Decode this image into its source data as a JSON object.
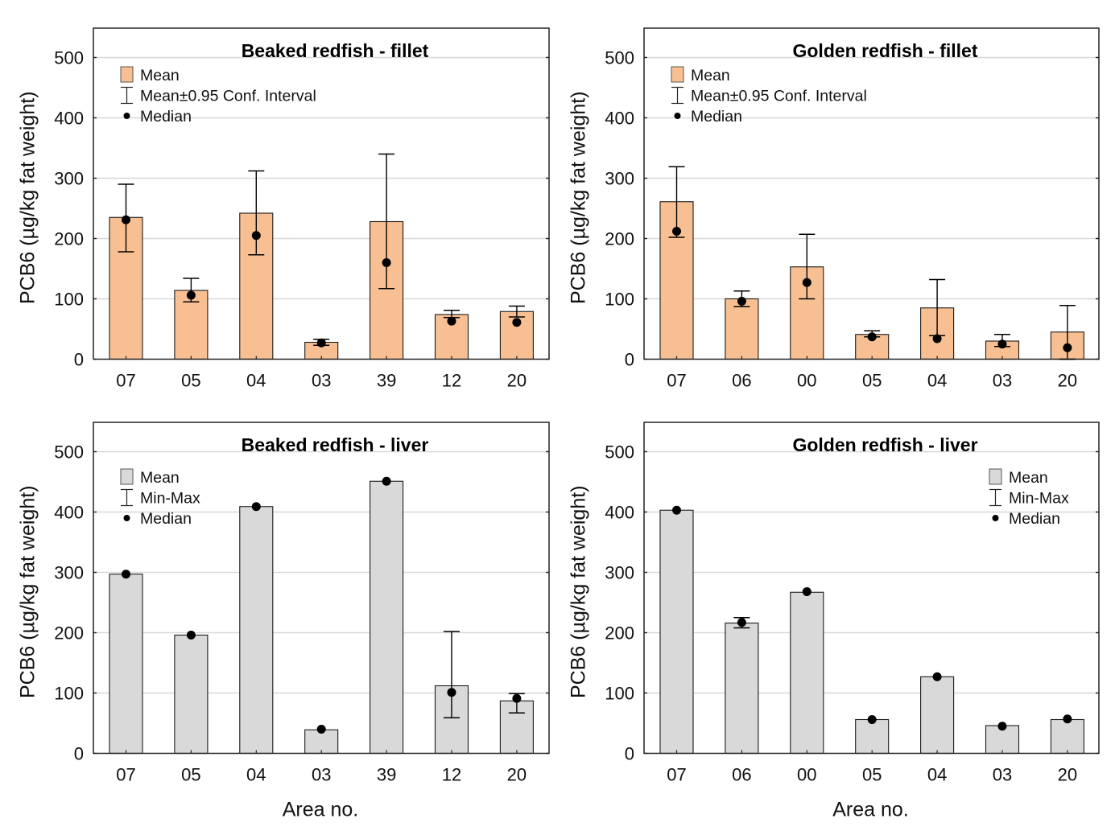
{
  "figure": {
    "colors": {
      "fillet_bar": "#F8C092",
      "liver_bar": "#D9D9D9",
      "bar_stroke": "#1a1a1a",
      "grid": "#d8d8d8",
      "axis": "#222222",
      "marker": "#000000"
    }
  },
  "chart_data": [
    {
      "id": "beaked-fillet",
      "type": "bar",
      "title": "Beaked redfish - fillet",
      "xlabel": "",
      "ylabel": "PCB6 (µg/kg fat weight)",
      "ylim": [
        0,
        550
      ],
      "yticks": [
        0,
        100,
        200,
        300,
        400,
        500
      ],
      "grid": true,
      "bar_color_key": "fillet_bar",
      "legend": {
        "placement": "top-left",
        "entries": [
          {
            "symbol": "box",
            "label": "Mean"
          },
          {
            "symbol": "errorbar",
            "label": "Mean±0.95 Conf. Interval"
          },
          {
            "symbol": "dot",
            "label": "Median"
          }
        ]
      },
      "categories": [
        "07",
        "05",
        "04",
        "03",
        "39",
        "12",
        "20"
      ],
      "series": [
        {
          "name": "Mean",
          "values": [
            235,
            114,
            242,
            28,
            228,
            74,
            79
          ]
        },
        {
          "name": "Mean±0.95 Conf. Interval (lower)",
          "values": [
            178,
            95,
            173,
            23,
            117,
            69,
            70
          ]
        },
        {
          "name": "Mean±0.95 Conf. Interval (upper)",
          "values": [
            290,
            134,
            312,
            33,
            340,
            81,
            88
          ]
        },
        {
          "name": "Median",
          "values": [
            231,
            106,
            205,
            27,
            160,
            63,
            61
          ]
        }
      ]
    },
    {
      "id": "golden-fillet",
      "type": "bar",
      "title": "Golden redfish - fillet",
      "xlabel": "",
      "ylabel": "PCB6 (µg/kg fat weight)",
      "ylim": [
        0,
        550
      ],
      "yticks": [
        0,
        100,
        200,
        300,
        400,
        500
      ],
      "grid": true,
      "bar_color_key": "fillet_bar",
      "legend": {
        "placement": "top-left",
        "entries": [
          {
            "symbol": "box",
            "label": "Mean"
          },
          {
            "symbol": "errorbar",
            "label": "Mean±0.95 Conf. Interval"
          },
          {
            "symbol": "dot",
            "label": "Median"
          }
        ]
      },
      "categories": [
        "07",
        "06",
        "00",
        "05",
        "04",
        "03",
        "20"
      ],
      "series": [
        {
          "name": "Mean",
          "values": [
            261,
            100,
            153,
            41,
            85,
            30,
            45
          ]
        },
        {
          "name": "Mean±0.95 Conf. Interval (lower)",
          "values": [
            202,
            87,
            100,
            37,
            39,
            21,
            0
          ]
        },
        {
          "name": "Mean±0.95 Conf. Interval (upper)",
          "values": [
            319,
            113,
            207,
            47,
            132,
            41,
            89
          ]
        },
        {
          "name": "Median",
          "values": [
            212,
            96,
            127,
            37,
            34,
            25,
            19
          ]
        }
      ]
    },
    {
      "id": "beaked-liver",
      "type": "bar",
      "title": "Beaked redfish - liver",
      "xlabel": "Area no.",
      "ylabel": "PCB6 (µg/kg fat weight)",
      "ylim": [
        0,
        550
      ],
      "yticks": [
        0,
        100,
        200,
        300,
        400,
        500
      ],
      "grid": true,
      "bar_color_key": "liver_bar",
      "legend": {
        "placement": "top-left",
        "entries": [
          {
            "symbol": "box",
            "label": "Mean"
          },
          {
            "symbol": "errorbar",
            "label": "Min-Max"
          },
          {
            "symbol": "dot",
            "label": "Median"
          }
        ]
      },
      "categories": [
        "07",
        "05",
        "04",
        "03",
        "39",
        "12",
        "20"
      ],
      "series": [
        {
          "name": "Mean",
          "values": [
            297,
            196,
            409,
            39,
            451,
            112,
            87
          ]
        },
        {
          "name": "Min",
          "values": [
            297,
            196,
            409,
            39,
            451,
            59,
            67
          ]
        },
        {
          "name": "Max",
          "values": [
            297,
            196,
            409,
            39,
            451,
            202,
            99
          ]
        },
        {
          "name": "Median",
          "values": [
            297,
            196,
            409,
            40,
            451,
            101,
            91
          ]
        }
      ]
    },
    {
      "id": "golden-liver",
      "type": "bar",
      "title": "Golden redfish - liver",
      "xlabel": "Area no.",
      "ylabel": "PCB6 (µg/kg fat weight)",
      "ylim": [
        0,
        550
      ],
      "yticks": [
        0,
        100,
        200,
        300,
        400,
        500
      ],
      "grid": true,
      "bar_color_key": "liver_bar",
      "legend": {
        "placement": "top-right",
        "entries": [
          {
            "symbol": "box",
            "label": "Mean"
          },
          {
            "symbol": "errorbar",
            "label": "Min-Max"
          },
          {
            "symbol": "dot",
            "label": "Median"
          }
        ]
      },
      "categories": [
        "07",
        "06",
        "00",
        "05",
        "04",
        "03",
        "20"
      ],
      "series": [
        {
          "name": "Mean",
          "values": [
            403,
            216,
            267,
            56,
            127,
            46,
            56
          ]
        },
        {
          "name": "Min",
          "values": [
            403,
            208,
            267,
            56,
            127,
            46,
            56
          ]
        },
        {
          "name": "Max",
          "values": [
            403,
            225,
            267,
            56,
            127,
            46,
            56
          ]
        },
        {
          "name": "Median",
          "values": [
            403,
            217,
            268,
            56,
            127,
            45,
            57
          ]
        }
      ]
    }
  ]
}
